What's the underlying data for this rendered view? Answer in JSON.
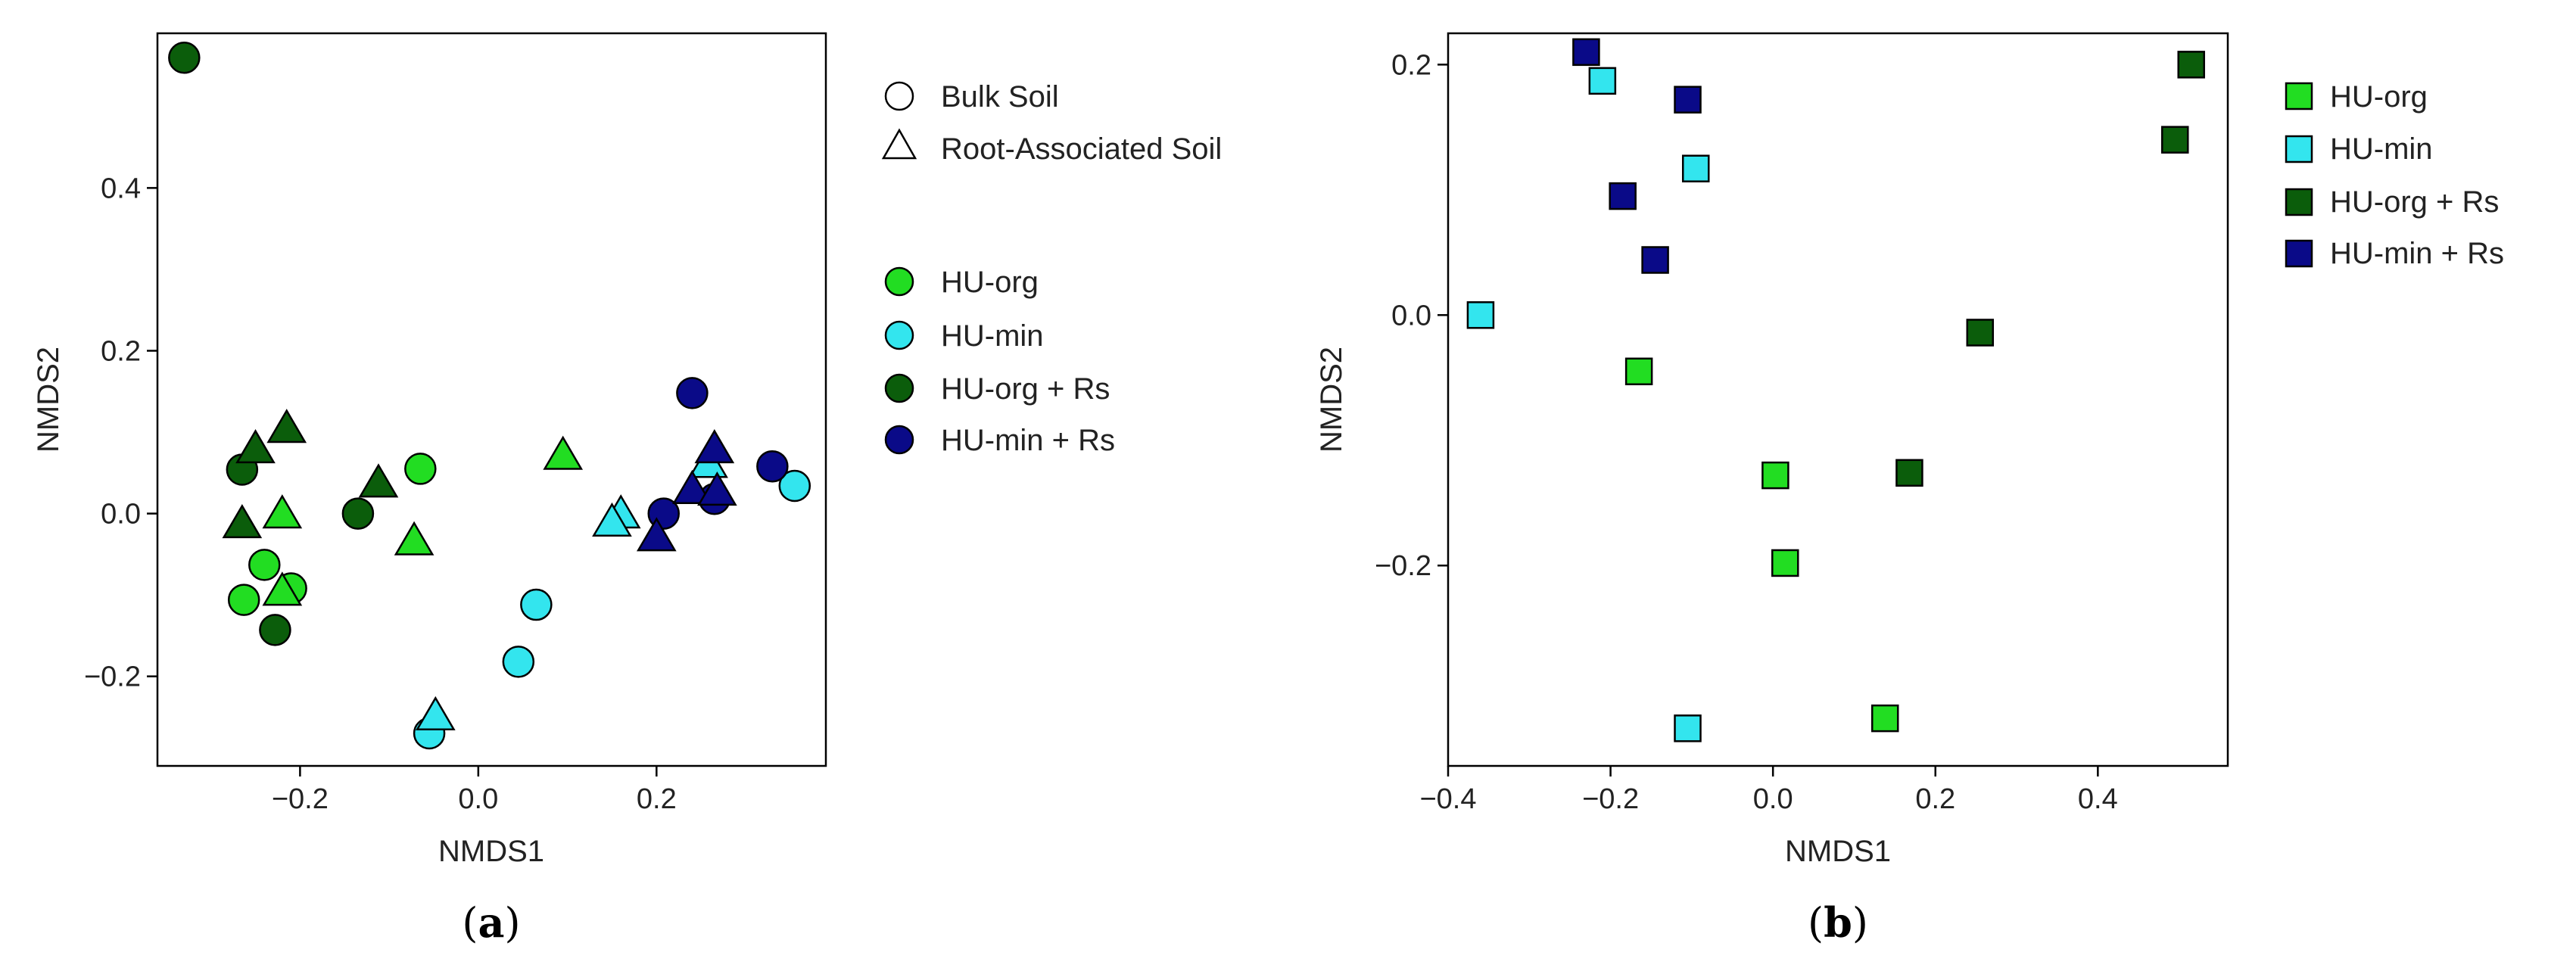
{
  "colors": {
    "HU-org": "#22dd22",
    "HU-min": "#33e5ee",
    "HU-org + Rs": "#0b5d0b",
    "HU-min + Rs": "#0a0a88"
  },
  "chart_data": [
    {
      "type": "scatter",
      "panel_label": "a",
      "xlabel": "NMDS1",
      "ylabel": "NMDS2",
      "xlim": [
        -0.36,
        0.39
      ],
      "ylim": [
        -0.31,
        0.59
      ],
      "xticks": [
        -0.2,
        0.0,
        0.2
      ],
      "xtick_labels": [
        "−0.2",
        "0.0",
        "0.2"
      ],
      "yticks": [
        -0.2,
        0.0,
        0.2,
        0.4
      ],
      "ytick_labels": [
        "−0.2",
        "0.0",
        "0.2",
        "0.4"
      ],
      "shape_legend": [
        {
          "label": "Bulk Soil",
          "shape": "circle"
        },
        {
          "label": "Root-Associated Soil",
          "shape": "triangle"
        }
      ],
      "group_legend": [
        "HU-org",
        "HU-min",
        "HU-org + Rs",
        "HU-min + Rs"
      ],
      "series": [
        {
          "name": "HU-org",
          "shape": "circle",
          "points": [
            [
              -0.065,
              0.055
            ],
            [
              -0.24,
              -0.063
            ],
            [
              -0.21,
              -0.092
            ],
            [
              -0.263,
              -0.106
            ]
          ]
        },
        {
          "name": "HU-org",
          "shape": "triangle",
          "points": [
            [
              0.095,
              0.072
            ],
            [
              -0.22,
              0.0
            ],
            [
              -0.072,
              -0.033
            ],
            [
              -0.22,
              -0.095
            ]
          ]
        },
        {
          "name": "HU-min",
          "shape": "circle",
          "points": [
            [
              0.355,
              0.034
            ],
            [
              0.065,
              -0.112
            ],
            [
              0.045,
              -0.182
            ],
            [
              -0.055,
              -0.27
            ]
          ]
        },
        {
          "name": "HU-min",
          "shape": "triangle",
          "points": [
            [
              0.16,
              0.0
            ],
            [
              0.15,
              -0.01
            ],
            [
              0.258,
              0.062
            ],
            [
              -0.048,
              -0.248
            ]
          ]
        },
        {
          "name": "HU-org + Rs",
          "shape": "circle",
          "points": [
            [
              -0.33,
              0.56
            ],
            [
              -0.265,
              0.054
            ],
            [
              -0.135,
              0.0
            ],
            [
              -0.228,
              -0.143
            ]
          ]
        },
        {
          "name": "HU-org + Rs",
          "shape": "triangle",
          "points": [
            [
              -0.25,
              0.08
            ],
            [
              -0.215,
              0.105
            ],
            [
              -0.112,
              0.038
            ],
            [
              -0.265,
              -0.012
            ]
          ]
        },
        {
          "name": "HU-min + Rs",
          "shape": "circle",
          "points": [
            [
              0.24,
              0.148
            ],
            [
              0.33,
              0.058
            ],
            [
              0.208,
              0.0
            ],
            [
              0.265,
              0.018
            ]
          ]
        },
        {
          "name": "HU-min + Rs",
          "shape": "triangle",
          "points": [
            [
              0.265,
              0.08
            ],
            [
              0.24,
              0.03
            ],
            [
              0.268,
              0.028
            ],
            [
              0.2,
              -0.028
            ]
          ]
        }
      ]
    },
    {
      "type": "scatter",
      "panel_label": "b",
      "xlabel": "NMDS1",
      "ylabel": "NMDS2",
      "xlim": [
        -0.4,
        0.56
      ],
      "ylim": [
        -0.36,
        0.225
      ],
      "xticks": [
        -0.4,
        -0.2,
        0.0,
        0.2,
        0.4
      ],
      "xtick_labels": [
        "−0.4",
        "−0.2",
        "0.0",
        "0.2",
        "0.4"
      ],
      "yticks": [
        -0.2,
        0.0,
        0.2
      ],
      "ytick_labels": [
        "−0.2",
        "0.0",
        "0.2"
      ],
      "group_legend": [
        "HU-org",
        "HU-min",
        "HU-org + Rs",
        "HU-min + Rs"
      ],
      "series": [
        {
          "name": "HU-org",
          "shape": "square",
          "points": [
            [
              -0.165,
              -0.045
            ],
            [
              0.003,
              -0.128
            ],
            [
              0.015,
              -0.198
            ],
            [
              0.138,
              -0.322
            ]
          ]
        },
        {
          "name": "HU-min",
          "shape": "square",
          "points": [
            [
              -0.21,
              0.187
            ],
            [
              -0.095,
              0.117
            ],
            [
              -0.36,
              0.0
            ],
            [
              -0.105,
              -0.33
            ]
          ]
        },
        {
          "name": "HU-org + Rs",
          "shape": "square",
          "points": [
            [
              0.515,
              0.2
            ],
            [
              0.495,
              0.14
            ],
            [
              0.255,
              -0.014
            ],
            [
              0.168,
              -0.126
            ]
          ]
        },
        {
          "name": "HU-min + Rs",
          "shape": "square",
          "points": [
            [
              -0.23,
              0.21
            ],
            [
              -0.105,
              0.172
            ],
            [
              -0.185,
              0.095
            ],
            [
              -0.145,
              0.044
            ]
          ]
        }
      ]
    }
  ]
}
